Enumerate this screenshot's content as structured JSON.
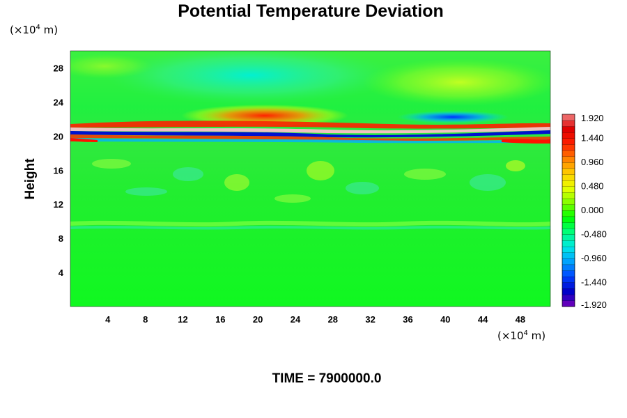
{
  "chart_data": {
    "type": "heatmap",
    "title": "Potential Temperature Deviation",
    "ylabel": "Height",
    "xlabel": "",
    "x_unit_prefix": "(×10",
    "x_unit_exp": "4",
    "x_unit_suffix": " m)",
    "y_unit_prefix": "(×10",
    "y_unit_exp": "4",
    "y_unit_suffix": " m)",
    "xlim": [
      0,
      51.2
    ],
    "ylim": [
      0,
      30
    ],
    "x_ticks": [
      "4",
      "8",
      "12",
      "16",
      "20",
      "24",
      "28",
      "32",
      "36",
      "40",
      "44",
      "48"
    ],
    "y_ticks": [
      "4",
      "8",
      "12",
      "16",
      "20",
      "24",
      "28"
    ],
    "colorbar": {
      "range": [
        -1.92,
        1.92
      ],
      "labels": [
        "1.920",
        "1.440",
        "0.960",
        "0.480",
        "0.000",
        "-0.480",
        "-0.960",
        "-1.440",
        "-1.920"
      ],
      "levels": 32,
      "colors": [
        "#7a00b8",
        "#0000c8",
        "#0040ff",
        "#00a0ff",
        "#00e8e8",
        "#00ff80",
        "#00ff00",
        "#80ff00",
        "#e8ff00",
        "#ffd000",
        "#ff8000",
        "#ff2000",
        "#e00000",
        "#f08080"
      ]
    },
    "field_regions": [
      {
        "feature": "background",
        "height_range": [
          0,
          18
        ],
        "value": 0.0
      },
      {
        "feature": "weak wave band",
        "height": 9.7,
        "value": -0.2
      },
      {
        "feature": "strong layered oscillation band",
        "height_range": [
          19.3,
          21.8
        ],
        "value_range": [
          -1.92,
          1.92
        ]
      },
      {
        "feature": "positive anomaly",
        "x": 22,
        "height": 22.0,
        "value": 1.4
      },
      {
        "feature": "negative anomaly",
        "x": 40,
        "height": 22.2,
        "value": -1.2
      },
      {
        "feature": "negative anomaly",
        "x": 19,
        "height": 27.3,
        "value": -0.7
      },
      {
        "feature": "positive anomaly",
        "x": 42,
        "height": 26.5,
        "value": 0.5
      }
    ]
  },
  "footer": {
    "time_label": "TIME = 7900000.0"
  }
}
